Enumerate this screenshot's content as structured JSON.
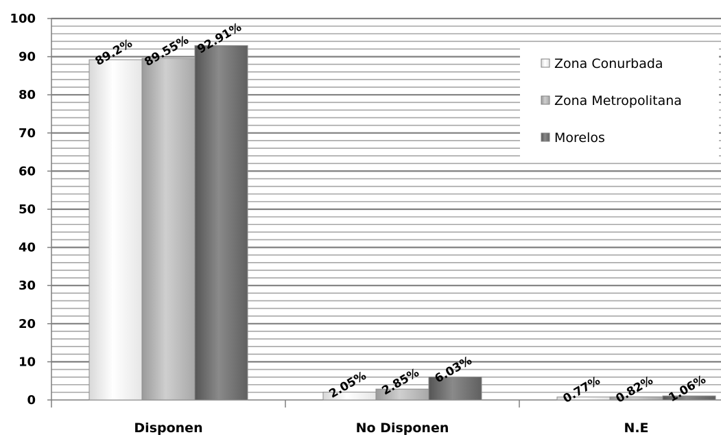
{
  "chart_data": {
    "type": "bar",
    "categories": [
      "Disponen",
      "No Disponen",
      "N.E"
    ],
    "series": [
      {
        "name": "Zona Conurbada",
        "values": [
          89.2,
          2.05,
          0.77
        ],
        "labels": [
          "89.2%",
          "2.05%",
          "0.77%"
        ]
      },
      {
        "name": "Zona Metropolitana",
        "values": [
          89.55,
          2.85,
          0.82
        ],
        "labels": [
          "89.55%",
          "2.85%",
          "0.82%"
        ]
      },
      {
        "name": "Morelos",
        "values": [
          92.91,
          6.03,
          1.06
        ],
        "labels": [
          "92.91%",
          "6.03%",
          "1.06%"
        ]
      }
    ],
    "ylim": [
      0,
      100
    ],
    "yticks": [
      "0",
      "10",
      "20",
      "30",
      "40",
      "50",
      "60",
      "70",
      "80",
      "90",
      "100"
    ],
    "legend_position": "top-right",
    "grid": true,
    "colors": {
      "Zona Conurbada": "#f2f2f2",
      "Zona Metropolitana": "#b3b3b3",
      "Morelos": "#6e6e6e",
      "gridline": "#a6a6a6"
    }
  }
}
